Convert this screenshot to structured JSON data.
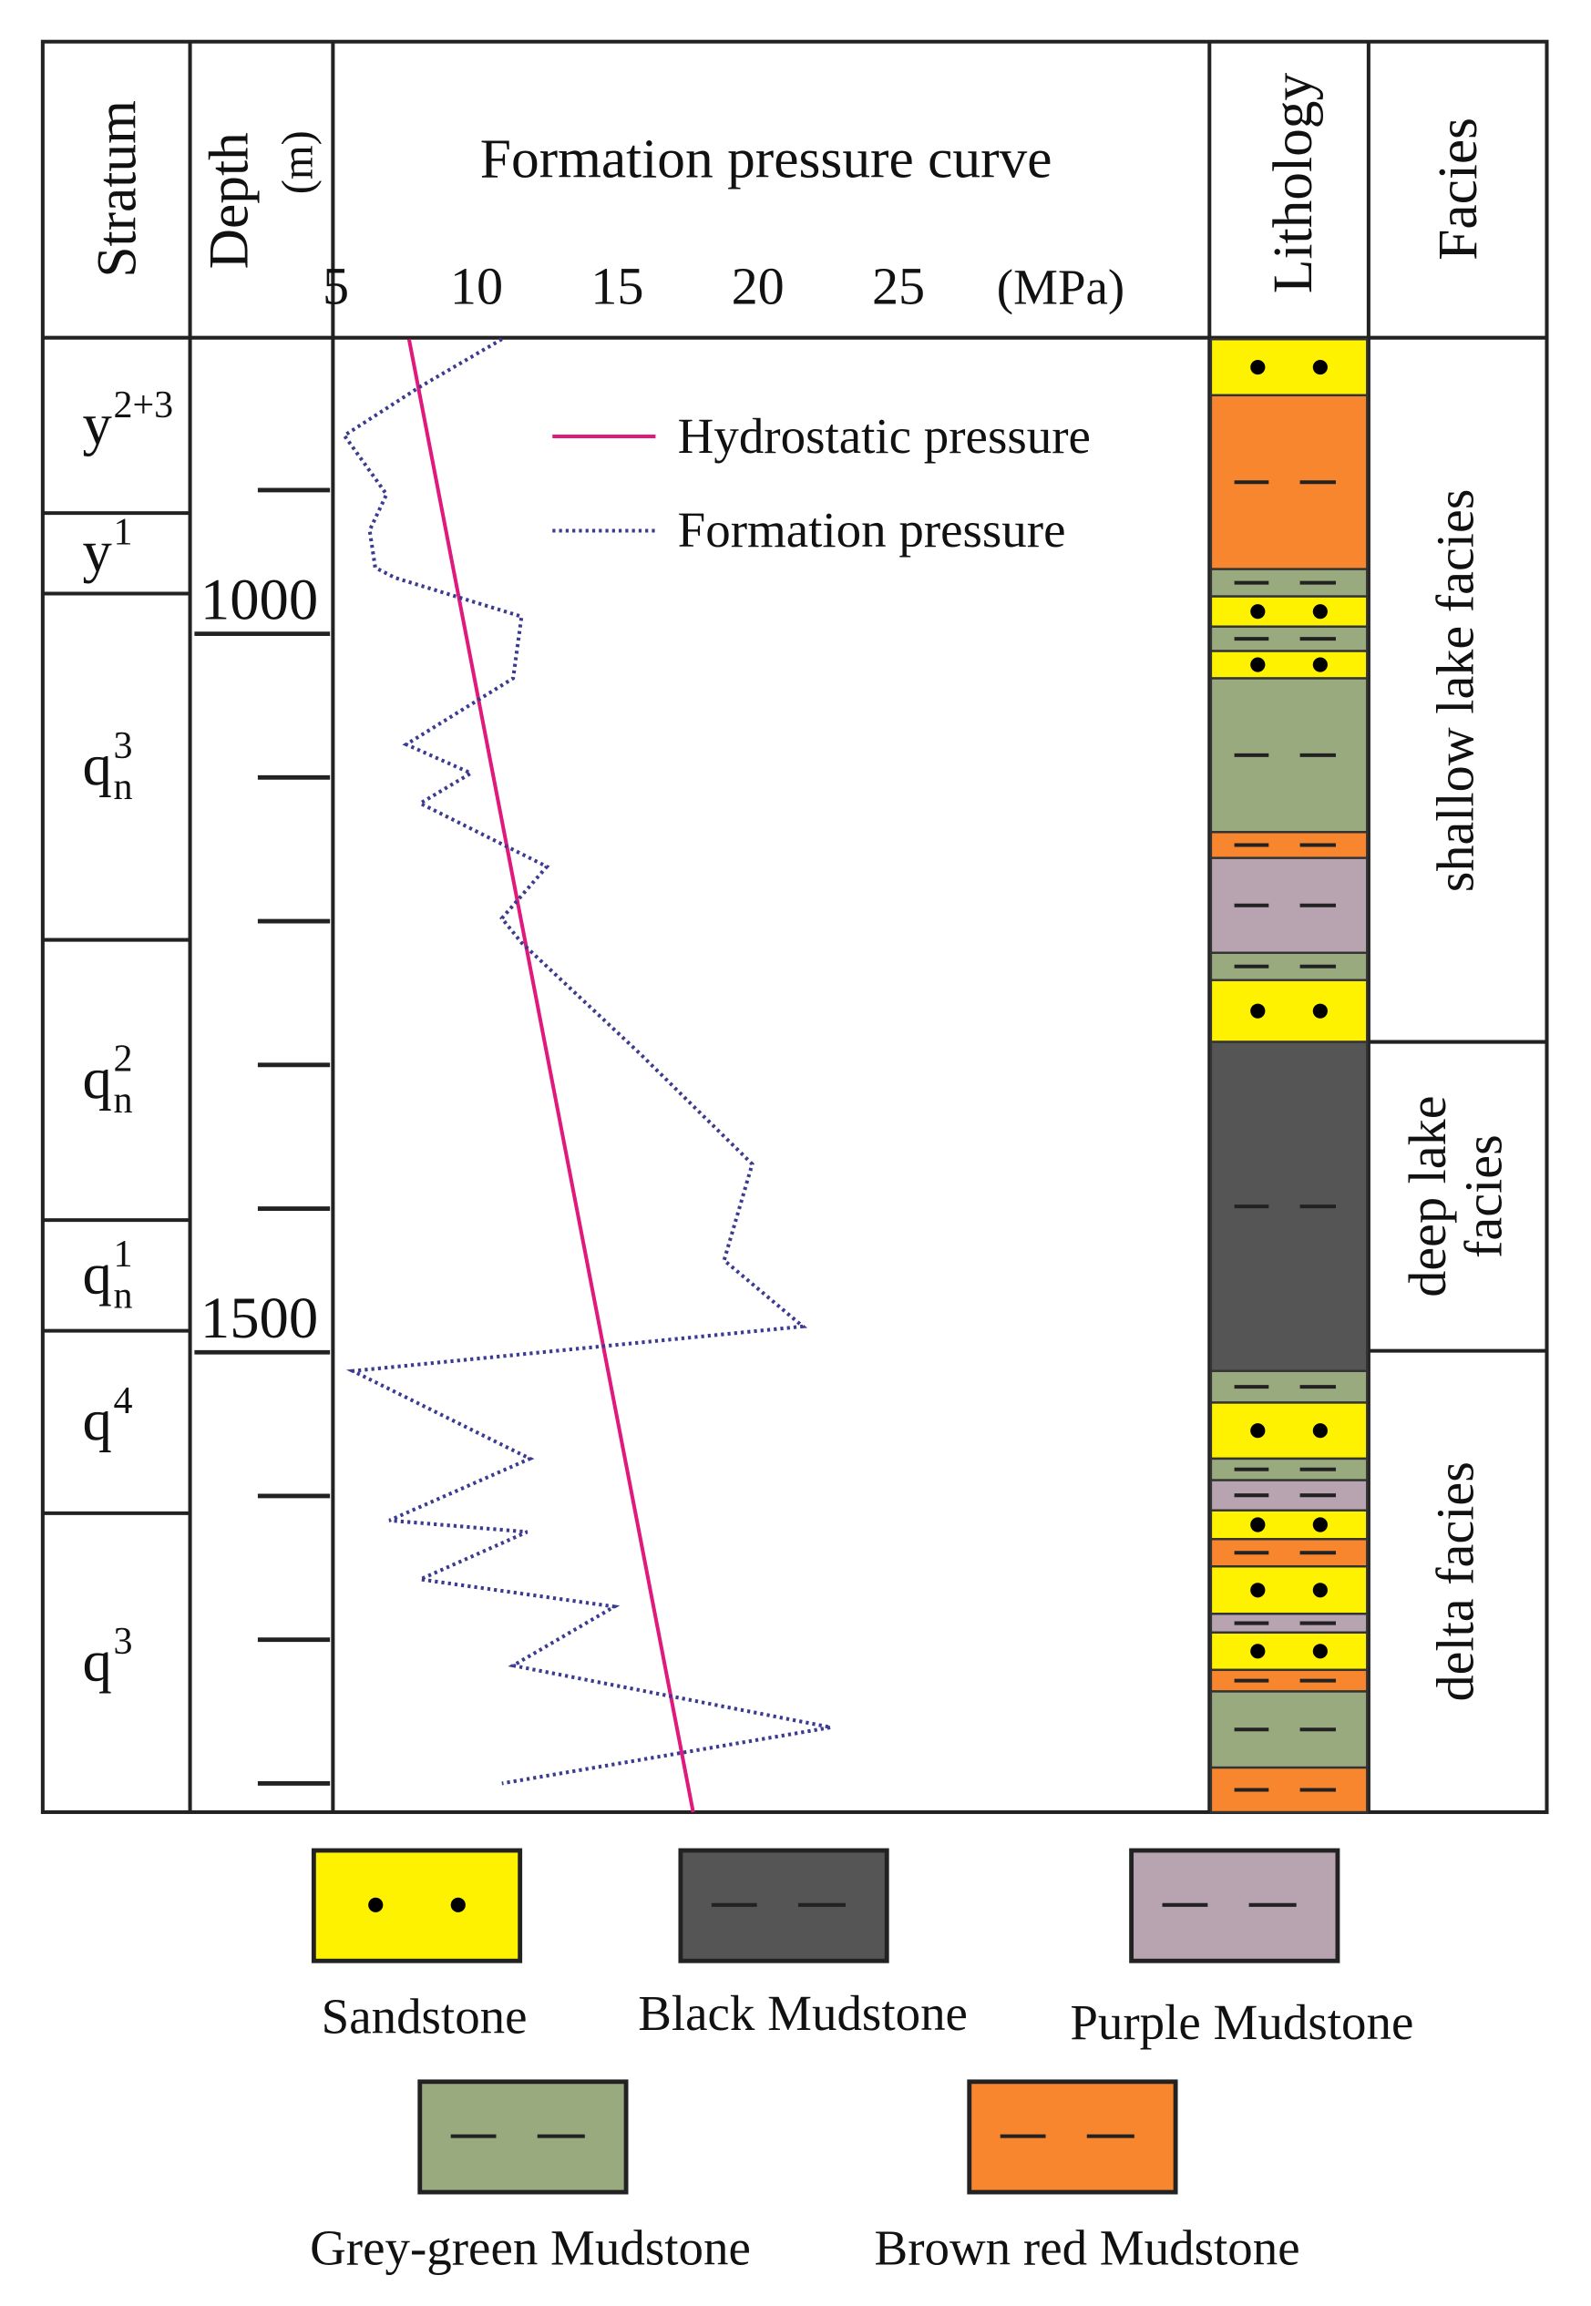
{
  "columns": {
    "stratum": "Stratum",
    "depth": "Depth",
    "depth_unit": "(m)",
    "lithology": "Lithology",
    "facies": "Facies"
  },
  "chart_data": {
    "type": "line",
    "title": "Formation pressure curve",
    "xlabel": "(MPa)",
    "xlim": [
      5,
      36
    ],
    "xticks": [
      5,
      10,
      15,
      20,
      25
    ],
    "ylim": [
      795,
      1820
    ],
    "yticks": [
      {
        "value": 900,
        "label": null
      },
      1000,
      {
        "value": 1100,
        "label": null
      },
      {
        "value": 1200,
        "label": null
      },
      {
        "value": 1300,
        "label": null
      },
      {
        "value": 1400,
        "label": null
      },
      1500,
      {
        "value": 1600,
        "label": null
      },
      {
        "value": 1700,
        "label": null
      },
      {
        "value": 1800,
        "label": null
      }
    ],
    "series": [
      {
        "name": "Hydrostatic pressure",
        "color": "#e0197d",
        "style": "solid",
        "x": [
          7.6,
          17.7
        ],
        "y": [
          795,
          1820
        ]
      },
      {
        "name": "Formation pressure",
        "color": "#3b3b8f",
        "style": "dotted",
        "x": [
          10.9,
          8.0,
          5.3,
          6.4,
          6.8,
          6.2,
          6.4,
          7.1,
          11.6,
          11.3,
          7.5,
          9.8,
          8.0,
          12.5,
          10.9,
          11.6,
          15.8,
          19.8,
          18.8,
          21.6,
          5.6,
          11.9,
          6.9,
          11.8,
          8.0,
          14.9,
          11.3,
          22.6,
          10.9
        ],
        "y": [
          795,
          828,
          862,
          892,
          903,
          928,
          954,
          961,
          988,
          1031,
          1077,
          1097,
          1118,
          1162,
          1198,
          1215,
          1292,
          1369,
          1436,
          1482,
          1513,
          1574,
          1617,
          1625,
          1658,
          1677,
          1718,
          1761,
          1800
        ]
      }
    ]
  },
  "strata": [
    {
      "base": "y",
      "sup": "2+3",
      "top": 795,
      "bottom": 916
    },
    {
      "base": "y",
      "sup": "1",
      "top": 916,
      "bottom": 972
    },
    {
      "base": "q",
      "sup": "3",
      "sub": "n",
      "top": 972,
      "bottom": 1213
    },
    {
      "base": "q",
      "sup": "2",
      "sub": "n",
      "top": 1213,
      "bottom": 1408
    },
    {
      "base": "q",
      "sup": "1",
      "sub": "n",
      "top": 1408,
      "bottom": 1485
    },
    {
      "base": "q",
      "sup": "4",
      "top": 1485,
      "bottom": 1612
    },
    {
      "base": "q",
      "sup": "3",
      "top": 1612,
      "bottom": 1820
    }
  ],
  "lithology": [
    {
      "rock": "Sandstone",
      "top": 795,
      "bottom": 834
    },
    {
      "rock": "Brown red Mudstone",
      "top": 834,
      "bottom": 955
    },
    {
      "rock": "Grey-green Mudstone",
      "top": 955,
      "bottom": 974
    },
    {
      "rock": "Sandstone",
      "top": 974,
      "bottom": 995
    },
    {
      "rock": "Grey-green Mudstone",
      "top": 995,
      "bottom": 1012
    },
    {
      "rock": "Sandstone",
      "top": 1012,
      "bottom": 1031
    },
    {
      "rock": "Grey-green Mudstone",
      "top": 1031,
      "bottom": 1138
    },
    {
      "rock": "Brown red Mudstone",
      "top": 1138,
      "bottom": 1156
    },
    {
      "rock": "Purple Mudstone",
      "top": 1156,
      "bottom": 1222
    },
    {
      "rock": "Grey-green Mudstone",
      "top": 1222,
      "bottom": 1241
    },
    {
      "rock": "Sandstone",
      "top": 1241,
      "bottom": 1284
    },
    {
      "rock": "Black Mudstone",
      "top": 1284,
      "bottom": 1513
    },
    {
      "rock": "Grey-green Mudstone",
      "top": 1513,
      "bottom": 1535
    },
    {
      "rock": "Sandstone",
      "top": 1535,
      "bottom": 1574
    },
    {
      "rock": "Grey-green Mudstone",
      "top": 1574,
      "bottom": 1589
    },
    {
      "rock": "Purple Mudstone",
      "top": 1589,
      "bottom": 1610
    },
    {
      "rock": "Sandstone",
      "top": 1610,
      "bottom": 1630
    },
    {
      "rock": "Brown red Mudstone",
      "top": 1630,
      "bottom": 1649
    },
    {
      "rock": "Sandstone",
      "top": 1649,
      "bottom": 1682
    },
    {
      "rock": "Purple Mudstone",
      "top": 1682,
      "bottom": 1695
    },
    {
      "rock": "Sandstone",
      "top": 1695,
      "bottom": 1721
    },
    {
      "rock": "Brown red Mudstone",
      "top": 1721,
      "bottom": 1736
    },
    {
      "rock": "Grey-green Mudstone",
      "top": 1736,
      "bottom": 1789
    },
    {
      "rock": "Brown red Mudstone",
      "top": 1789,
      "bottom": 1820
    }
  ],
  "facies": [
    {
      "lines": [
        "shallow lake facies"
      ],
      "top": 795,
      "bottom": 1284
    },
    {
      "lines": [
        "deep lake",
        "facies"
      ],
      "top": 1284,
      "bottom": 1499
    },
    {
      "lines": [
        "delta facies"
      ],
      "top": 1499,
      "bottom": 1820
    }
  ],
  "legend": [
    {
      "name": "Sandstone",
      "color": "#fff200",
      "pattern": "dots"
    },
    {
      "name": "Black Mudstone",
      "color": "#555555",
      "pattern": "dashes"
    },
    {
      "name": "Purple Mudstone",
      "color": "#b8a3b0",
      "pattern": "dashes"
    },
    {
      "name": "Grey-green Mudstone",
      "color": "#98aa7e",
      "pattern": "dashes"
    },
    {
      "name": "Brown red Mudstone",
      "color": "#f7862f",
      "pattern": "dashes"
    }
  ]
}
